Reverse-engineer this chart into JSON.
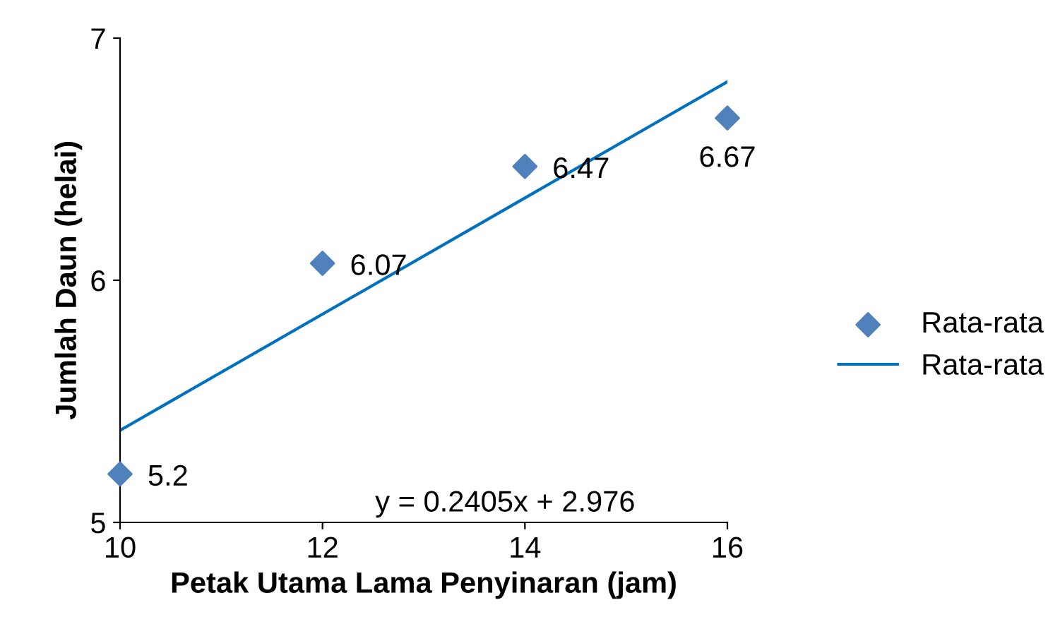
{
  "chart_data": {
    "type": "scatter",
    "xlabel": "Petak Utama Lama Penyinaran (jam)",
    "ylabel": "Jumlah Daun (helai)",
    "xlim": [
      10,
      16
    ],
    "xticks": [
      10,
      12,
      14,
      16
    ],
    "ylim": [
      5,
      7
    ],
    "yticks": [
      5,
      6,
      7
    ],
    "grid": false,
    "legend": "right",
    "data_labels": true,
    "marker": "diamond",
    "annotations": [
      "y = 0.2405x + 2.976"
    ],
    "series": [
      {
        "name": "Rata-rata",
        "color": "#4f81bd",
        "x": [
          10,
          12,
          14,
          16
        ],
        "values": [
          5.2,
          6.07,
          6.47,
          6.67
        ]
      },
      {
        "name": "Rata-rata",
        "type": "line",
        "color": "#0070c0",
        "x": [
          10,
          16
        ],
        "values": [
          5.38,
          6.82
        ],
        "data_labels": false,
        "marker": "none"
      }
    ]
  }
}
